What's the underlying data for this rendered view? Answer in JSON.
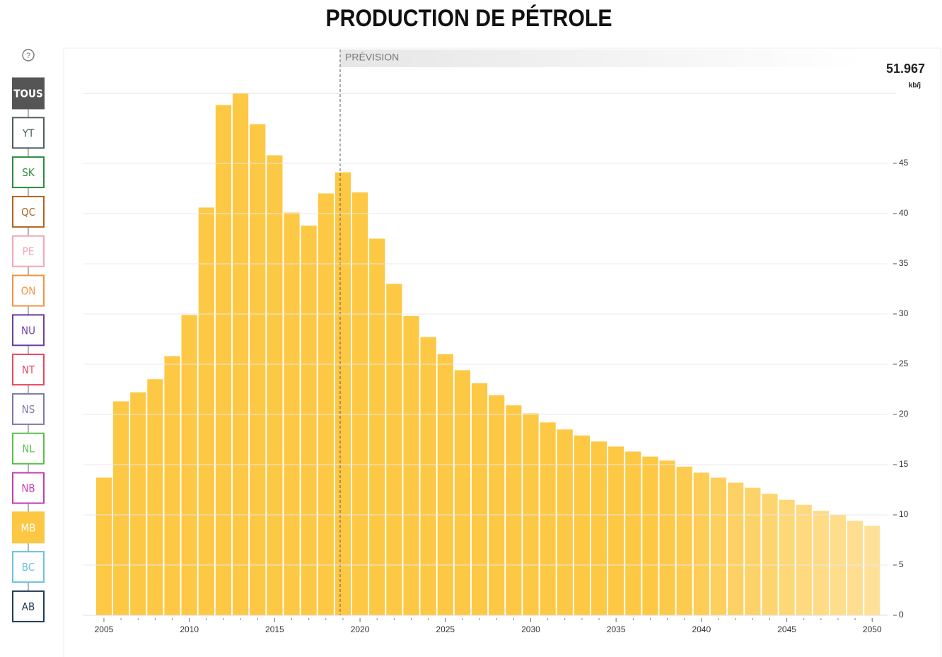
{
  "chart_data": {
    "type": "bar",
    "title": "PRODUCTION DE PÉTROLE",
    "annotation": "PRÉVISION",
    "max_value": 51.967,
    "unit": "kb/j",
    "filters": [
      {
        "label": "TOUS",
        "color": "#555555",
        "active": true
      },
      {
        "label": "YT",
        "color": "#4d5e5e",
        "active": false
      },
      {
        "label": "SK",
        "color": "#2e8b3e",
        "active": false
      },
      {
        "label": "QC",
        "color": "#b3621f",
        "active": false
      },
      {
        "label": "PE",
        "color": "#f3a5b5",
        "active": false
      },
      {
        "label": "ON",
        "color": "#f5923e",
        "active": false
      },
      {
        "label": "NU",
        "color": "#6b3f9c",
        "active": false
      },
      {
        "label": "NT",
        "color": "#e8475f",
        "active": false
      },
      {
        "label": "NS",
        "color": "#7b7aab",
        "active": false
      },
      {
        "label": "NL",
        "color": "#5bbf4f",
        "active": false
      },
      {
        "label": "NB",
        "color": "#c43cb0",
        "active": false
      },
      {
        "label": "MB",
        "color": "#fcc844",
        "active": true
      },
      {
        "label": "BC",
        "color": "#6ac1e0",
        "active": false
      },
      {
        "label": "AB",
        "color": "#1f3a56",
        "active": false
      }
    ],
    "x": [
      2005,
      2006,
      2007,
      2008,
      2009,
      2010,
      2011,
      2012,
      2013,
      2014,
      2015,
      2016,
      2017,
      2018,
      2019,
      2020,
      2021,
      2022,
      2023,
      2024,
      2025,
      2026,
      2027,
      2028,
      2029,
      2030,
      2031,
      2032,
      2033,
      2034,
      2035,
      2036,
      2037,
      2038,
      2039,
      2040,
      2041,
      2042,
      2043,
      2044,
      2045,
      2046,
      2047,
      2048,
      2049,
      2050
    ],
    "values": [
      13.7,
      21.3,
      22.2,
      23.5,
      25.8,
      29.9,
      40.6,
      50.8,
      51.967,
      48.9,
      45.8,
      40.1,
      38.8,
      42.0,
      44.1,
      42.1,
      37.5,
      33.0,
      29.8,
      27.7,
      26.0,
      24.4,
      23.1,
      21.9,
      20.9,
      20.1,
      19.2,
      18.5,
      17.9,
      17.3,
      16.8,
      16.3,
      15.8,
      15.4,
      14.8,
      14.2,
      13.7,
      13.2,
      12.7,
      12.1,
      11.5,
      11.0,
      10.4,
      10.0,
      9.4,
      8.9
    ],
    "color": "#fdc844",
    "xlim": [
      2003.8,
      2050.9
    ],
    "xticks": [
      2005,
      2010,
      2015,
      2020,
      2025,
      2030,
      2035,
      2040,
      2045,
      2050
    ],
    "ylim": [
      0,
      51.967
    ],
    "yticks": [
      0,
      5,
      10,
      15,
      20,
      25,
      30,
      35,
      40,
      45
    ],
    "grid": true
  }
}
